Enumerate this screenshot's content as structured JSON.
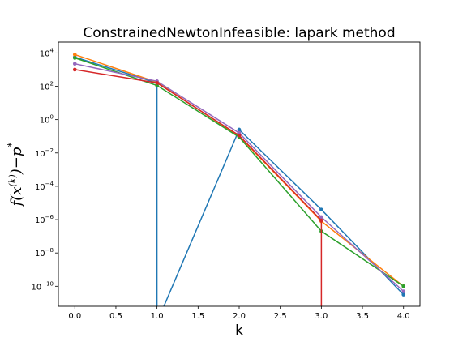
{
  "chart_data": {
    "type": "line",
    "title": "ConstrainedNewtonInfeasible: lapark method",
    "xlabel": "k",
    "ylabel": "f(x^(k))−p*",
    "ylabel_parts": {
      "f": "f(x",
      "sup": "(k)",
      "mid": ")−p",
      "star": "*"
    },
    "yscale": "log",
    "xlim": [
      -0.2,
      4.2
    ],
    "ylim_exp": [
      -11.2,
      4.65
    ],
    "xticks": [
      0.0,
      0.5,
      1.0,
      1.5,
      2.0,
      2.5,
      3.0,
      3.5,
      4.0
    ],
    "xtick_labels": [
      "0.0",
      "0.5",
      "1.0",
      "1.5",
      "2.0",
      "2.5",
      "3.0",
      "3.5",
      "4.0"
    ],
    "ytick_exponents": [
      4,
      2,
      0,
      -2,
      -4,
      -6,
      -8,
      -10
    ],
    "ytick_labels": [
      "4",
      "2",
      "0",
      "−2",
      "−4",
      "−6",
      "−8",
      "−10"
    ],
    "ytick_base": "10",
    "grid": false,
    "legend": "none",
    "series": [
      {
        "color": "#1f77b4",
        "x": [
          0,
          1,
          1,
          2,
          3,
          4
        ],
        "y_exp": [
          3.75,
          2.2,
          "drop",
          -0.6,
          -5.4,
          -10.5
        ]
      },
      {
        "color": "#ff7f0e",
        "x": [
          0,
          1,
          2,
          3,
          4
        ],
        "y_exp": [
          3.9,
          2.25,
          -1.0,
          -6.1,
          -10.0
        ]
      },
      {
        "color": "#2ca02c",
        "x": [
          0,
          1,
          2,
          3,
          4
        ],
        "y_exp": [
          3.7,
          2.05,
          -1.05,
          -6.7,
          -10.0
        ]
      },
      {
        "color": "#9467bd",
        "x": [
          0,
          1,
          2,
          3,
          4
        ],
        "y_exp": [
          3.35,
          2.3,
          -0.8,
          -5.85,
          -10.3
        ]
      },
      {
        "color": "#d62728",
        "x": [
          0,
          1,
          2,
          3,
          3
        ],
        "y_exp": [
          3.0,
          2.2,
          -0.95,
          -6.05,
          "drop"
        ]
      }
    ]
  }
}
